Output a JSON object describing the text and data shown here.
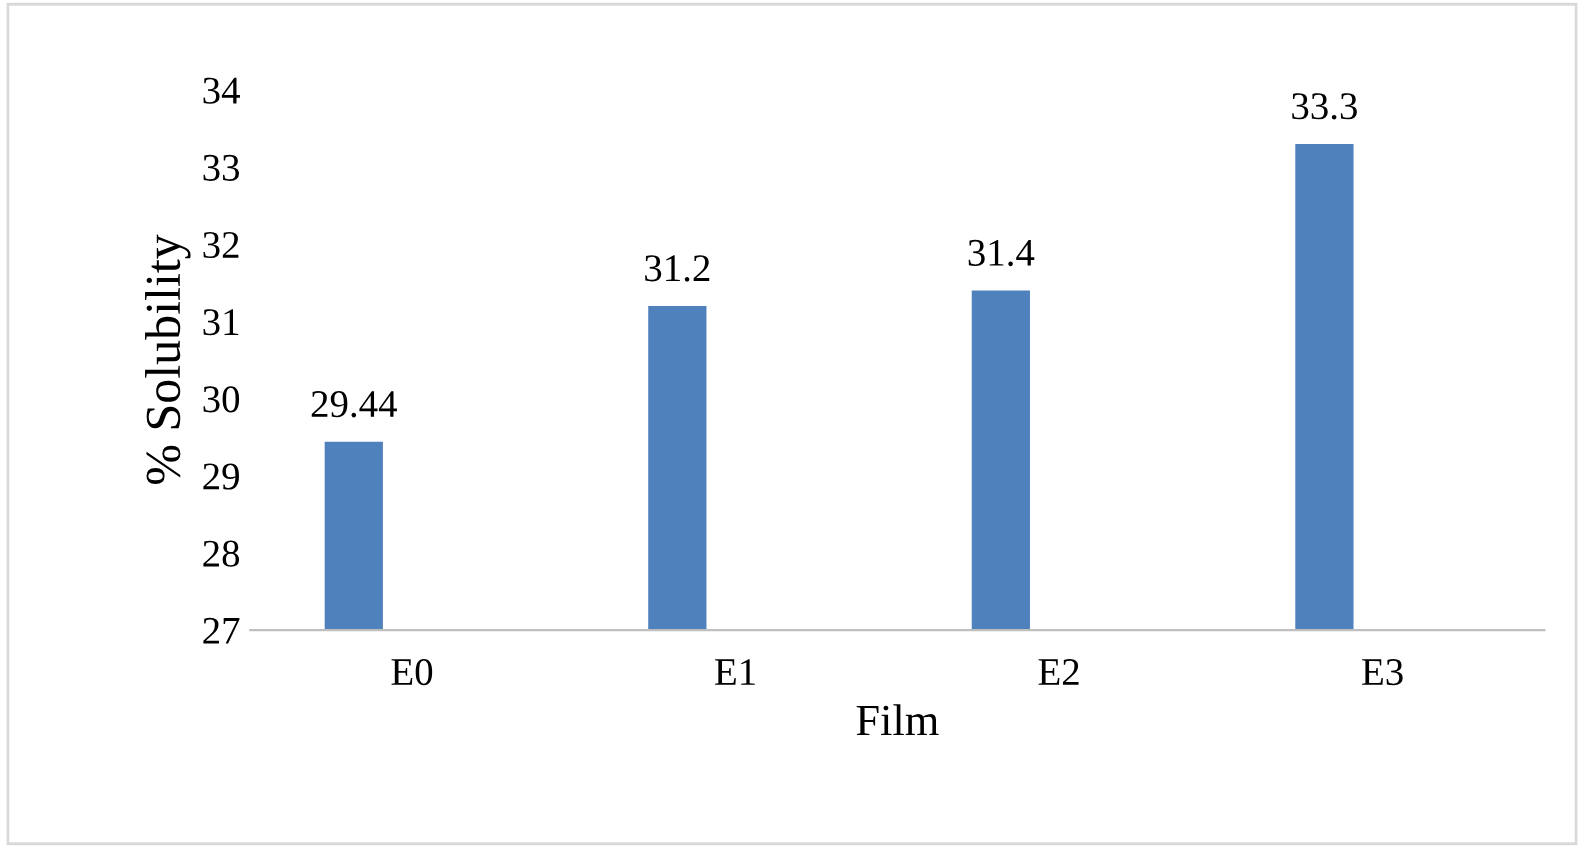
{
  "chart_data": {
    "type": "bar",
    "xlabel": "Film",
    "ylabel": "% Solubility",
    "categories": [
      "E0",
      "E1",
      "E2",
      "E3"
    ],
    "series": [
      {
        "color": "#4f81bd",
        "values": [
          29.44,
          31.2,
          31.4,
          33.3
        ]
      }
    ],
    "ylim": [
      27,
      34
    ],
    "yticks": [
      27,
      28,
      29,
      30,
      31,
      32,
      33,
      34
    ],
    "data_labels": true,
    "grid": false,
    "legend": false
  }
}
